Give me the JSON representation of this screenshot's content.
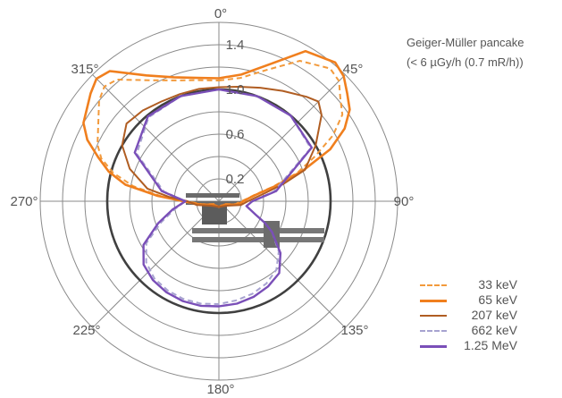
{
  "annotation": {
    "line1": "Geiger-Müller pancake",
    "line2": "(< 6 µGy/h (0.7 mR/h))"
  },
  "chart_data": {
    "type": "polar-line",
    "angle_labels": [
      "0°",
      "45°",
      "90°",
      "135°",
      "180°",
      "225°",
      "270°",
      "315°"
    ],
    "radial_labels": [
      {
        "label": "0.2",
        "value": 0.2
      },
      {
        "label": "0.6",
        "value": 0.6
      },
      {
        "label": "1.0",
        "value": 1.0
      },
      {
        "label": "1.4",
        "value": 1.4
      }
    ],
    "radial_range": [
      0,
      1.6
    ],
    "grid_rings": [
      0.2,
      0.4,
      0.6,
      0.8,
      1.0,
      1.2,
      1.4,
      1.6
    ],
    "reference_ring": 1.0,
    "legend_position": "bottom-right",
    "series": [
      {
        "name": "33 keV",
        "color": "#f29a3c",
        "dash": true,
        "width": 2,
        "points": [
          [
            0,
            1.08
          ],
          [
            10,
            1.12
          ],
          [
            20,
            1.25
          ],
          [
            30,
            1.45
          ],
          [
            40,
            1.55
          ],
          [
            45,
            1.52
          ],
          [
            50,
            1.42
          ],
          [
            55,
            1.35
          ],
          [
            60,
            1.18
          ],
          [
            65,
            0.95
          ],
          [
            70,
            0.75
          ],
          [
            75,
            0.5
          ],
          [
            80,
            0.32
          ],
          [
            85,
            0.25
          ],
          [
            90,
            0.2
          ],
          [
            100,
            0.15
          ],
          [
            120,
            0.05
          ],
          [
            180,
            0.05
          ],
          [
            240,
            0.05
          ],
          [
            260,
            0.15
          ],
          [
            270,
            0.3
          ],
          [
            275,
            0.52
          ],
          [
            280,
            0.78
          ],
          [
            285,
            0.98
          ],
          [
            290,
            1.12
          ],
          [
            295,
            1.2
          ],
          [
            300,
            1.25
          ],
          [
            310,
            1.4
          ],
          [
            315,
            1.45
          ],
          [
            320,
            1.42
          ],
          [
            330,
            1.25
          ],
          [
            340,
            1.15
          ],
          [
            350,
            1.1
          ],
          [
            360,
            1.08
          ]
        ]
      },
      {
        "name": "65 keV",
        "color": "#f07f1e",
        "dash": false,
        "width": 2.6,
        "points": [
          [
            0,
            1.1
          ],
          [
            10,
            1.15
          ],
          [
            20,
            1.3
          ],
          [
            30,
            1.55
          ],
          [
            40,
            1.62
          ],
          [
            45,
            1.58
          ],
          [
            50,
            1.5
          ],
          [
            55,
            1.43
          ],
          [
            60,
            1.3
          ],
          [
            65,
            1.1
          ],
          [
            70,
            0.8
          ],
          [
            75,
            0.52
          ],
          [
            80,
            0.34
          ],
          [
            85,
            0.26
          ],
          [
            90,
            0.22
          ],
          [
            100,
            0.17
          ],
          [
            120,
            0.06
          ],
          [
            180,
            0.05
          ],
          [
            240,
            0.06
          ],
          [
            260,
            0.17
          ],
          [
            270,
            0.32
          ],
          [
            275,
            0.55
          ],
          [
            280,
            0.85
          ],
          [
            285,
            1.02
          ],
          [
            290,
            1.15
          ],
          [
            295,
            1.3
          ],
          [
            300,
            1.4
          ],
          [
            310,
            1.5
          ],
          [
            315,
            1.55
          ],
          [
            320,
            1.52
          ],
          [
            330,
            1.3
          ],
          [
            340,
            1.18
          ],
          [
            350,
            1.12
          ],
          [
            360,
            1.1
          ]
        ]
      },
      {
        "name": "207 keV",
        "color": "#b05d22",
        "dash": false,
        "width": 2,
        "points": [
          [
            0,
            1.02
          ],
          [
            10,
            1.04
          ],
          [
            20,
            1.08
          ],
          [
            30,
            1.14
          ],
          [
            40,
            1.22
          ],
          [
            45,
            1.26
          ],
          [
            50,
            1.2
          ],
          [
            60,
            1.0
          ],
          [
            70,
            0.82
          ],
          [
            75,
            0.6
          ],
          [
            80,
            0.42
          ],
          [
            85,
            0.32
          ],
          [
            90,
            0.26
          ],
          [
            100,
            0.2
          ],
          [
            120,
            0.08
          ],
          [
            180,
            0.05
          ],
          [
            240,
            0.08
          ],
          [
            260,
            0.2
          ],
          [
            270,
            0.28
          ],
          [
            275,
            0.45
          ],
          [
            280,
            0.65
          ],
          [
            290,
            0.85
          ],
          [
            300,
            1.0
          ],
          [
            310,
            1.08
          ],
          [
            320,
            1.06
          ],
          [
            330,
            1.03
          ],
          [
            340,
            1.02
          ],
          [
            350,
            1.02
          ],
          [
            360,
            1.02
          ]
        ]
      },
      {
        "name": "662 keV",
        "color": "#a7a3d0",
        "dash": true,
        "width": 2,
        "points": [
          [
            0,
            1.0
          ],
          [
            20,
            1.0
          ],
          [
            40,
            1.0
          ],
          [
            60,
            0.95
          ],
          [
            80,
            0.5
          ],
          [
            90,
            0.3
          ],
          [
            100,
            0.25
          ],
          [
            110,
            0.35
          ],
          [
            115,
            0.45
          ],
          [
            120,
            0.55
          ],
          [
            130,
            0.7
          ],
          [
            140,
            0.8
          ],
          [
            150,
            0.85
          ],
          [
            160,
            0.88
          ],
          [
            170,
            0.9
          ],
          [
            180,
            0.92
          ],
          [
            190,
            0.93
          ],
          [
            200,
            0.93
          ],
          [
            210,
            0.92
          ],
          [
            220,
            0.9
          ],
          [
            230,
            0.85
          ],
          [
            240,
            0.75
          ],
          [
            250,
            0.55
          ],
          [
            260,
            0.4
          ],
          [
            270,
            0.3
          ],
          [
            280,
            0.5
          ],
          [
            300,
            0.85
          ],
          [
            320,
            0.98
          ],
          [
            340,
            1.0
          ],
          [
            360,
            1.0
          ]
        ]
      },
      {
        "name": "1.25 MeV",
        "color": "#7a4fb8",
        "dash": false,
        "width": 2.4,
        "points": [
          [
            0,
            1.0
          ],
          [
            20,
            1.0
          ],
          [
            40,
            1.0
          ],
          [
            60,
            0.96
          ],
          [
            80,
            0.52
          ],
          [
            90,
            0.3
          ],
          [
            100,
            0.25
          ],
          [
            110,
            0.35
          ],
          [
            115,
            0.45
          ],
          [
            120,
            0.55
          ],
          [
            130,
            0.72
          ],
          [
            140,
            0.84
          ],
          [
            150,
            0.88
          ],
          [
            160,
            0.91
          ],
          [
            170,
            0.93
          ],
          [
            180,
            0.94
          ],
          [
            190,
            0.95
          ],
          [
            200,
            0.95
          ],
          [
            210,
            0.94
          ],
          [
            220,
            0.92
          ],
          [
            230,
            0.88
          ],
          [
            240,
            0.78
          ],
          [
            250,
            0.58
          ],
          [
            260,
            0.42
          ],
          [
            270,
            0.3
          ],
          [
            280,
            0.52
          ],
          [
            300,
            0.87
          ],
          [
            320,
            0.99
          ],
          [
            340,
            1.0
          ],
          [
            360,
            1.0
          ]
        ]
      }
    ]
  }
}
